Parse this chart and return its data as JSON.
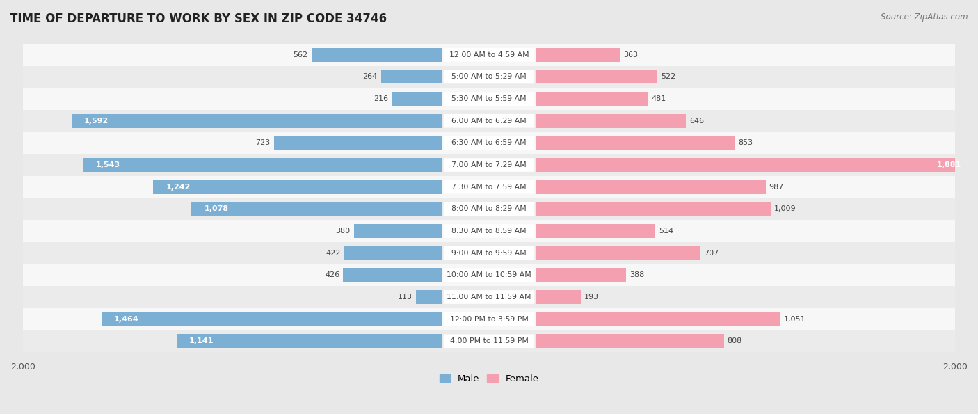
{
  "title": "TIME OF DEPARTURE TO WORK BY SEX IN ZIP CODE 34746",
  "source": "Source: ZipAtlas.com",
  "categories": [
    "12:00 AM to 4:59 AM",
    "5:00 AM to 5:29 AM",
    "5:30 AM to 5:59 AM",
    "6:00 AM to 6:29 AM",
    "6:30 AM to 6:59 AM",
    "7:00 AM to 7:29 AM",
    "7:30 AM to 7:59 AM",
    "8:00 AM to 8:29 AM",
    "8:30 AM to 8:59 AM",
    "9:00 AM to 9:59 AM",
    "10:00 AM to 10:59 AM",
    "11:00 AM to 11:59 AM",
    "12:00 PM to 3:59 PM",
    "4:00 PM to 11:59 PM"
  ],
  "male_values": [
    562,
    264,
    216,
    1592,
    723,
    1543,
    1242,
    1078,
    380,
    422,
    426,
    113,
    1464,
    1141
  ],
  "female_values": [
    363,
    522,
    481,
    646,
    853,
    1881,
    987,
    1009,
    514,
    707,
    388,
    193,
    1051,
    808
  ],
  "male_color": "#7bafd4",
  "female_color": "#f4a0b0",
  "male_label": "Male",
  "female_label": "Female",
  "xlim": 2000,
  "row_color_even": "#f2f2f2",
  "row_color_odd": "#e8e8e8",
  "label_pill_color": "#ffffff",
  "background_color": "#e8e8e8",
  "title_fontsize": 12,
  "label_threshold": 900
}
